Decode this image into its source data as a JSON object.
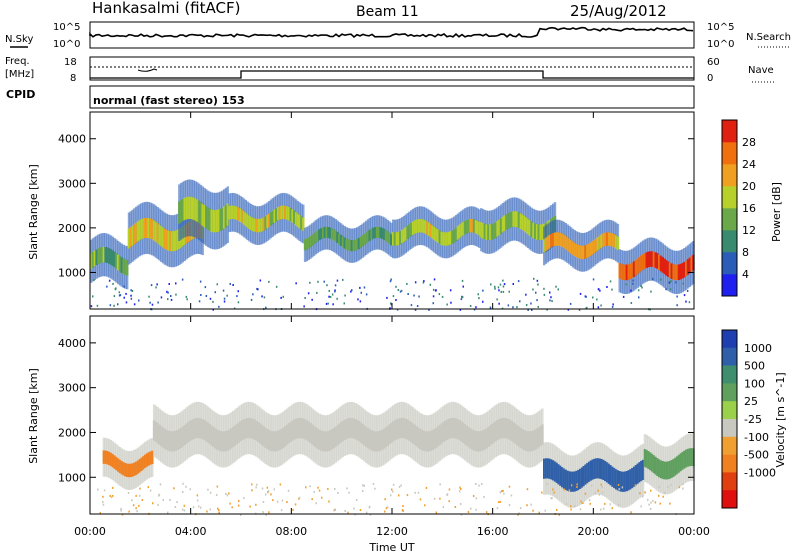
{
  "header": {
    "station": "Hankasalmi (fitACF)",
    "beam": "Beam 11",
    "date": "25/Aug/2012"
  },
  "noise_panel": {
    "left_label": "N.Sky",
    "left_ticks": [
      "10^5",
      "10^0"
    ],
    "right_label": "N.Search",
    "right_ticks": [
      "10^5",
      "10^0"
    ]
  },
  "freq_panel": {
    "left_label_1": "Freq.",
    "left_label_2": "[MHz]",
    "left_ticks": [
      "18",
      "8"
    ],
    "right_label": "Nave",
    "right_ticks": [
      "60",
      "0"
    ]
  },
  "cpid": {
    "label": "CPID",
    "text": "normal (fast stereo) 153"
  },
  "colors": {
    "power_scale": [
      "#1f1ff0",
      "#2a5cb8",
      "#3a8a70",
      "#6aa84a",
      "#b8d02a",
      "#f0a020",
      "#f07010",
      "#e02010"
    ],
    "velocity_scale": [
      "#1f3fb0",
      "#2f5fa8",
      "#3f8f6f",
      "#5fa05f",
      "#9ad04a",
      "#c8c8c0",
      "#f0a030",
      "#f08020",
      "#e04010",
      "#e01010"
    ]
  },
  "chart_data": [
    {
      "type": "heatmap",
      "name": "power",
      "ylabel": "Slant Range [km]",
      "yticks": [
        "1000",
        "2000",
        "3000",
        "4000"
      ],
      "ylim": [
        180,
        4600
      ],
      "xlim": [
        "00:00",
        "24:00"
      ],
      "colorbar": {
        "label": "Power [dB]",
        "tick_labels": [
          "4",
          "8",
          "12",
          "16",
          "20",
          "24",
          "28"
        ]
      },
      "echo_bands": [
        {
          "t_start": 0.0,
          "t_end": 1.5,
          "range_km": [
            900,
            1600
          ],
          "power_db": 14
        },
        {
          "t_start": 1.5,
          "t_end": 4.5,
          "range_km": [
            1400,
            2300
          ],
          "power_db": 20
        },
        {
          "t_start": 3.5,
          "t_end": 5.5,
          "range_km": [
            1800,
            2800
          ],
          "power_db": 16
        },
        {
          "t_start": 5.5,
          "t_end": 8.5,
          "range_km": [
            1900,
            2500
          ],
          "power_db": 18
        },
        {
          "t_start": 8.5,
          "t_end": 12.0,
          "range_km": [
            1500,
            2000
          ],
          "power_db": 12
        },
        {
          "t_start": 12.0,
          "t_end": 15.5,
          "range_km": [
            1600,
            2200
          ],
          "power_db": 18
        },
        {
          "t_start": 15.5,
          "t_end": 18.5,
          "range_km": [
            1700,
            2400
          ],
          "power_db": 16
        },
        {
          "t_start": 18.0,
          "t_end": 21.0,
          "range_km": [
            1300,
            1900
          ],
          "power_db": 22
        },
        {
          "t_start": 21.0,
          "t_end": 24.0,
          "range_km": [
            800,
            1500
          ],
          "power_db": 28
        }
      ]
    },
    {
      "type": "heatmap",
      "name": "velocity",
      "ylabel": "Slant Range [km]",
      "yticks": [
        "1000",
        "2000",
        "3000",
        "4000"
      ],
      "ylim": [
        180,
        4600
      ],
      "xlim": [
        "00:00",
        "24:00"
      ],
      "colorbar": {
        "label": "Velocity [m s^-1]",
        "tick_labels": [
          "1000",
          "500",
          "100",
          "25",
          "-25",
          "-100",
          "-500",
          "-1000"
        ]
      },
      "echo_bands": [
        {
          "t_start": 0.5,
          "t_end": 2.5,
          "range_km": [
            1000,
            1600
          ],
          "velocity_ms": -200
        },
        {
          "t_start": 2.5,
          "t_end": 18.0,
          "range_km": [
            1500,
            2400
          ],
          "velocity_ms": 0
        },
        {
          "t_start": 18.0,
          "t_end": 22.0,
          "range_km": [
            600,
            1500
          ],
          "velocity_ms": 300
        },
        {
          "t_start": 22.0,
          "t_end": 24.0,
          "range_km": [
            900,
            1700
          ],
          "velocity_ms": 150
        }
      ]
    }
  ],
  "xaxis": {
    "label": "Time UT",
    "ticks": [
      "00:00",
      "04:00",
      "08:00",
      "12:00",
      "16:00",
      "20:00",
      "00:00"
    ]
  }
}
